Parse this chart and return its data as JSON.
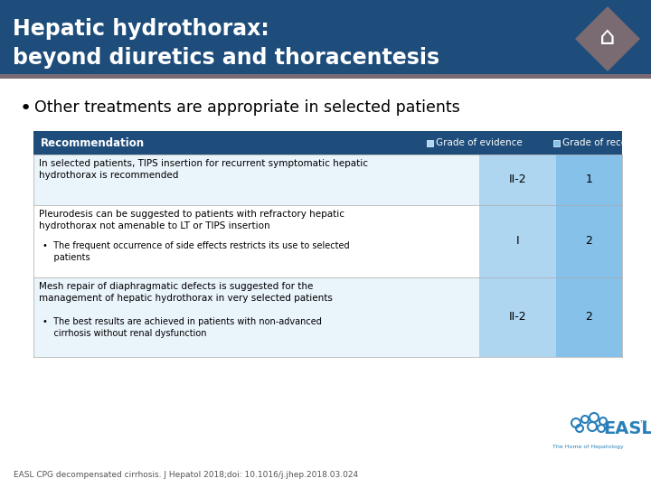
{
  "title_line1": "Hepatic hydrothorax:",
  "title_line2": "beyond diuretics and thoracentesis",
  "title_bg_color": "#1e4d7b",
  "title_stripe_color": "#7a6a72",
  "title_text_color": "#ffffff",
  "bullet_text": "Other treatments are appropriate in selected patients",
  "header_bg_color": "#1e4d7b",
  "header_text_color": "#ffffff",
  "header_label": "Recommendation",
  "col1_label": "Grade of evidence",
  "col2_label": "Grade of recommendation",
  "col1_color": "#aed6f1",
  "col2_color": "#85c1e9",
  "row_alt_color": "#eaf4fb",
  "row_white_color": "#ffffff",
  "row_border_color": "#aaaaaa",
  "bg_color": "#ffffff",
  "rows": [
    {
      "text": "In selected patients, TIPS insertion for recurrent symptomatic hepatic\nhydrothorax is recommended",
      "evidence": "II-2",
      "recommendation": "1",
      "has_bullet": false,
      "bullet_text": ""
    },
    {
      "text": "Pleurodesis can be suggested to patients with refractory hepatic\nhydrothorax not amenable to LT or TIPS insertion",
      "evidence": "I",
      "recommendation": "2",
      "has_bullet": true,
      "bullet_text": "The frequent occurrence of side effects restricts its use to selected\n    patients"
    },
    {
      "text": "Mesh repair of diaphragmatic defects is suggested for the\nmanagement of hepatic hydrothorax in very selected patients",
      "evidence": "II-2",
      "recommendation": "2",
      "has_bullet": true,
      "bullet_text": "The best results are achieved in patients with non-advanced\n    cirrhosis without renal dysfunction"
    }
  ],
  "footer_text": "EASL CPG decompensated cirrhosis. J Hepatol 2018;doi: 10.1016/j.jhep.2018.03.024",
  "footer_color": "#555555",
  "diamond_color": "#7a6a72",
  "easl_color": "#2980b9",
  "logo_circles": [
    [
      -18,
      12,
      5
    ],
    [
      -8,
      16,
      4
    ],
    [
      2,
      18,
      5
    ],
    [
      12,
      14,
      4
    ],
    [
      -14,
      6,
      4
    ],
    [
      0,
      8,
      5
    ],
    [
      10,
      6,
      4
    ]
  ]
}
